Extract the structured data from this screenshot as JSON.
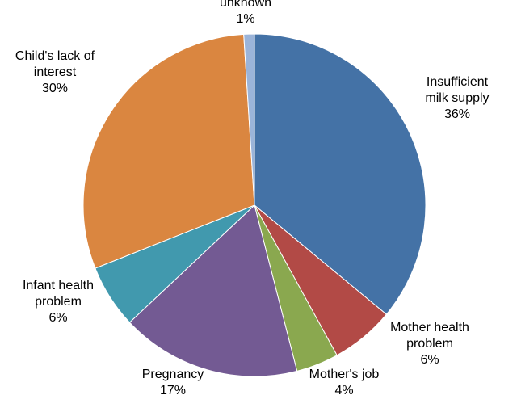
{
  "chart_data": {
    "type": "pie",
    "title": "",
    "start_angle_deg": 0,
    "direction": "clockwise",
    "legend": "none",
    "slices": [
      {
        "label": "Insufficient milk supply",
        "label_lines": [
          "Insufficient",
          "milk supply"
        ],
        "value": 36,
        "value_label": "36%",
        "color": "#4472a6"
      },
      {
        "label": "Mother health problem",
        "label_lines": [
          "Mother health",
          "problem"
        ],
        "value": 6,
        "value_label": "6%",
        "color": "#b24a46"
      },
      {
        "label": "Mother's job",
        "label_lines": [
          "Mother's job"
        ],
        "value": 4,
        "value_label": "4%",
        "color": "#8aa84f"
      },
      {
        "label": "Pregnancy",
        "label_lines": [
          "Pregnancy"
        ],
        "value": 17,
        "value_label": "17%",
        "color": "#735a93"
      },
      {
        "label": "Infant health problem",
        "label_lines": [
          "Infant health",
          "problem"
        ],
        "value": 6,
        "value_label": "6%",
        "color": "#4199ae"
      },
      {
        "label": "Child's lack of interest",
        "label_lines": [
          "Child's lack of",
          "interest"
        ],
        "value": 30,
        "value_label": "30%",
        "color": "#da8640"
      },
      {
        "label": "unknown",
        "label_lines": [
          "unknown"
        ],
        "value": 1,
        "value_label": "1%",
        "color": "#9bb4d9"
      }
    ]
  }
}
